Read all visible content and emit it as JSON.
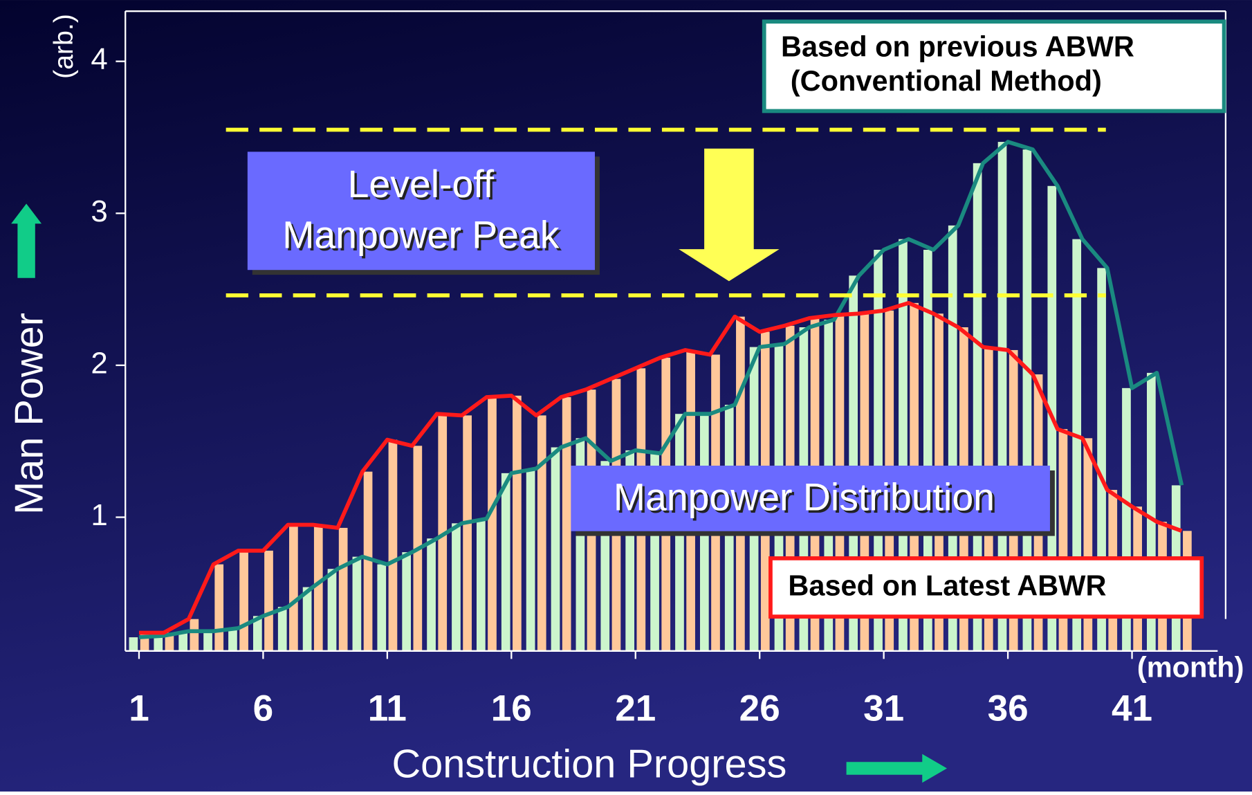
{
  "chart_data": {
    "type": "bar-line",
    "x_label": "Construction Progress",
    "y_label": "Man Power",
    "y_unit": "(arb.)",
    "x_unit": "(month)",
    "x": [
      1,
      2,
      3,
      4,
      5,
      6,
      7,
      8,
      9,
      10,
      11,
      12,
      13,
      14,
      15,
      16,
      17,
      18,
      19,
      20,
      21,
      22,
      23,
      24,
      25,
      26,
      27,
      28,
      29,
      30,
      31,
      32,
      33,
      34,
      35,
      36,
      37,
      38,
      39,
      40,
      41,
      42,
      43
    ],
    "series": [
      {
        "name": "Based on previous ABWR",
        "name_note": "(Conventional Method)",
        "color": "#1a8a80",
        "bar_color": "#ccf5cc",
        "values": [
          0.21,
          0.22,
          0.25,
          0.25,
          0.27,
          0.35,
          0.41,
          0.54,
          0.66,
          0.74,
          0.69,
          0.77,
          0.86,
          0.96,
          0.99,
          1.29,
          1.32,
          1.46,
          1.52,
          1.37,
          1.44,
          1.42,
          1.68,
          1.68,
          1.74,
          2.12,
          2.14,
          2.25,
          2.3,
          2.59,
          2.76,
          2.83,
          2.76,
          2.92,
          3.33,
          3.47,
          3.42,
          3.18,
          2.83,
          2.64,
          1.85,
          1.95,
          1.21
        ]
      },
      {
        "name": "Based on Latest ABWR",
        "color": "#ff1a1a",
        "bar_color": "#ffc89a",
        "values": [
          0.24,
          0.24,
          0.33,
          0.69,
          0.78,
          0.78,
          0.95,
          0.95,
          0.93,
          1.3,
          1.51,
          1.47,
          1.68,
          1.67,
          1.79,
          1.8,
          1.67,
          1.79,
          1.84,
          1.91,
          1.98,
          2.05,
          2.1,
          2.07,
          2.32,
          2.22,
          2.26,
          2.31,
          2.33,
          2.34,
          2.36,
          2.41,
          2.34,
          2.25,
          2.12,
          2.1,
          1.94,
          1.58,
          1.52,
          1.18,
          1.07,
          0.97,
          0.91
        ]
      }
    ],
    "xlim": [
      0.45,
      44.45
    ],
    "xticks": [
      1,
      6,
      11,
      16,
      21,
      26,
      31,
      36,
      41
    ],
    "ylim": [
      0.12,
      4.33
    ],
    "yticks": [
      1,
      2,
      3,
      4
    ],
    "reference_lines": [
      3.55,
      2.46
    ],
    "annotations": {
      "peak_box": [
        "Level-off",
        "Manpower Peak"
      ],
      "distribution_box": "Manpower Distribution"
    }
  }
}
